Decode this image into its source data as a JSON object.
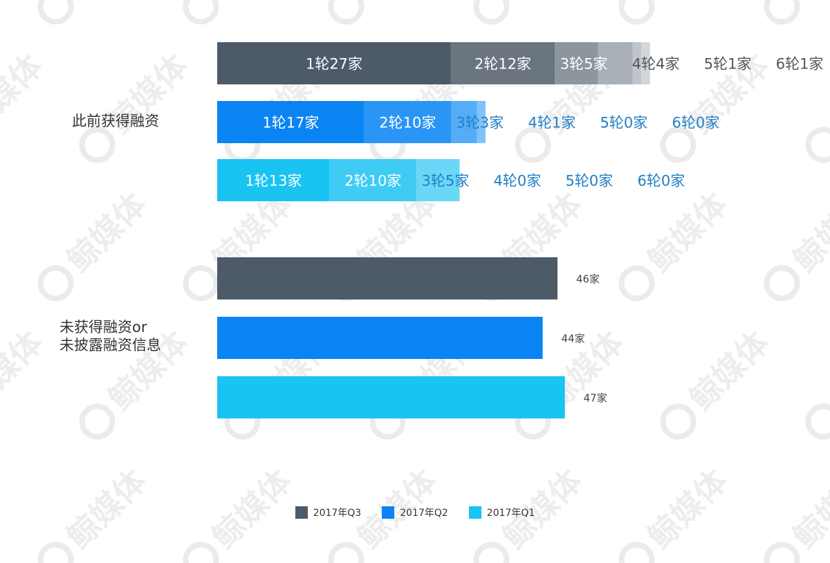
{
  "watermark": {
    "text": "鲸媒体",
    "color": "#d8d8d8"
  },
  "chart_data": {
    "type": "bar",
    "orientation": "horizontal",
    "stacked_group": {
      "category": "此前获得融资",
      "unit": "家",
      "round_labels": [
        "1轮",
        "2轮",
        "3轮",
        "4轮",
        "5轮",
        "6轮"
      ],
      "series": [
        {
          "name": "2017年Q3",
          "values": [
            27,
            12,
            5,
            4,
            1,
            1
          ],
          "labels": [
            "1轮27家",
            "2轮12家",
            "3轮5家",
            "4轮4家",
            "5轮1家",
            "6轮1家"
          ]
        },
        {
          "name": "2017年Q2",
          "values": [
            17,
            10,
            3,
            1,
            0,
            0
          ],
          "labels": [
            "1轮17家",
            "2轮10家",
            "3轮3家",
            "4轮1家",
            "5轮0家",
            "6轮0家"
          ]
        },
        {
          "name": "2017年Q1",
          "values": [
            13,
            10,
            5,
            0,
            0,
            0
          ],
          "labels": [
            "1轮13家",
            "2轮10家",
            "3轮5家",
            "4轮0家",
            "5轮0家",
            "6轮0家"
          ]
        }
      ]
    },
    "single_group": {
      "category_lines": [
        "未获得融资or",
        "未披露融资信息"
      ],
      "series": [
        {
          "name": "2017年Q3",
          "value": 46,
          "label": "46家"
        },
        {
          "name": "2017年Q2",
          "value": 44,
          "label": "44家"
        },
        {
          "name": "2017年Q1",
          "value": 47,
          "label": "47家"
        }
      ]
    },
    "legend": {
      "placement": "bottom-center",
      "items": [
        {
          "name": "2017年Q3",
          "color": "#4d5a68"
        },
        {
          "name": "2017年Q2",
          "color": "#0a84f2"
        },
        {
          "name": "2017年Q1",
          "color": "#19c3f2"
        }
      ]
    },
    "colors": {
      "Q3": [
        "#4d5a68",
        "#6a7580",
        "#8d969f",
        "#a9b0b7",
        "#bfc5ca",
        "#d3d7da"
      ],
      "Q2": [
        "#0a84f2",
        "#2b95f5",
        "#55acf7",
        "#7fc1f9",
        "#a6d5fb",
        "#c9e6fd"
      ],
      "Q1": [
        "#19c3f2",
        "#3fcbf4",
        "#6ad7f7",
        "#92e2f9",
        "#b5ecfb",
        "#d3f4fd"
      ],
      "overflow_text": {
        "Q3": "#555555",
        "Q2": "#1f7fc6",
        "Q1": "#1f7fc6"
      }
    }
  }
}
